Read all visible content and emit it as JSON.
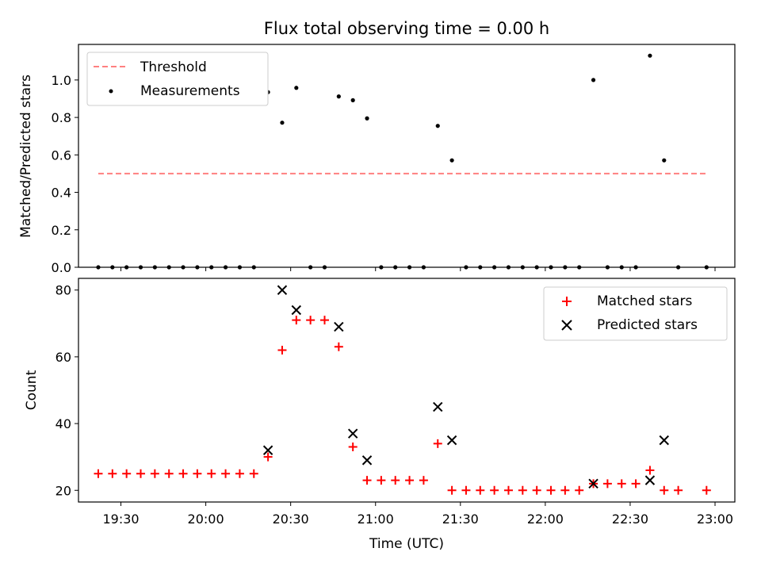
{
  "chart_data": [
    {
      "type": "scatter",
      "title": "Flux total observing time = 0.00 h",
      "xlabel": "",
      "ylabel": "Matched/Predicted stars",
      "xlim": [
        "19:15",
        "23:07"
      ],
      "ylim": [
        0,
        1.19
      ],
      "yticks": [
        "0.0",
        "0.2",
        "0.4",
        "0.6",
        "0.8",
        "1.0"
      ],
      "legend_position": "top-left",
      "grid": false,
      "threshold": {
        "name": "Threshold",
        "value": 0.5,
        "x_start": "19:22",
        "x_end": "22:57",
        "color": "#ff8080"
      },
      "series": [
        {
          "name": "Measurements",
          "color": "#000000",
          "marker": "dot",
          "points": [
            [
              "19:22",
              0
            ],
            [
              "19:27",
              0
            ],
            [
              "19:32",
              0
            ],
            [
              "19:37",
              0
            ],
            [
              "19:42",
              0
            ],
            [
              "19:47",
              0
            ],
            [
              "19:52",
              0
            ],
            [
              "19:57",
              0
            ],
            [
              "20:02",
              0
            ],
            [
              "20:07",
              0
            ],
            [
              "20:12",
              0
            ],
            [
              "20:17",
              0
            ],
            [
              "20:22",
              0.935
            ],
            [
              "20:27",
              0.772
            ],
            [
              "20:32",
              0.958
            ],
            [
              "20:37",
              0
            ],
            [
              "20:42",
              0
            ],
            [
              "20:47",
              0.912
            ],
            [
              "20:52",
              0.892
            ],
            [
              "20:57",
              0.795
            ],
            [
              "21:02",
              0
            ],
            [
              "21:07",
              0
            ],
            [
              "21:12",
              0
            ],
            [
              "21:17",
              0
            ],
            [
              "21:22",
              0.755
            ],
            [
              "21:27",
              0.571
            ],
            [
              "21:32",
              0
            ],
            [
              "21:37",
              0
            ],
            [
              "21:42",
              0
            ],
            [
              "21:47",
              0
            ],
            [
              "21:52",
              0
            ],
            [
              "21:57",
              0
            ],
            [
              "22:02",
              0
            ],
            [
              "22:07",
              0
            ],
            [
              "22:12",
              0
            ],
            [
              "22:17",
              1.0
            ],
            [
              "22:22",
              0
            ],
            [
              "22:27",
              0
            ],
            [
              "22:32",
              0
            ],
            [
              "22:37",
              1.13
            ],
            [
              "22:42",
              0.571
            ],
            [
              "22:47",
              0
            ],
            [
              "22:57",
              0
            ]
          ]
        }
      ]
    },
    {
      "type": "scatter",
      "title": "",
      "xlabel": "Time (UTC)",
      "ylabel": "Count",
      "xlim": [
        "19:15",
        "23:07"
      ],
      "ylim": [
        16.5,
        83.5
      ],
      "yticks": [
        "20",
        "40",
        "60",
        "80"
      ],
      "xticks": [
        "19:30",
        "20:00",
        "20:30",
        "21:00",
        "21:30",
        "22:00",
        "22:30",
        "23:00"
      ],
      "legend_position": "top-right",
      "grid": false,
      "series": [
        {
          "name": "Matched stars",
          "color": "#ff0000",
          "marker": "plus",
          "points": [
            [
              "19:22",
              25
            ],
            [
              "19:27",
              25
            ],
            [
              "19:32",
              25
            ],
            [
              "19:37",
              25
            ],
            [
              "19:42",
              25
            ],
            [
              "19:47",
              25
            ],
            [
              "19:52",
              25
            ],
            [
              "19:57",
              25
            ],
            [
              "20:02",
              25
            ],
            [
              "20:07",
              25
            ],
            [
              "20:12",
              25
            ],
            [
              "20:17",
              25
            ],
            [
              "20:22",
              30
            ],
            [
              "20:27",
              62
            ],
            [
              "20:32",
              71
            ],
            [
              "20:37",
              71
            ],
            [
              "20:42",
              71
            ],
            [
              "20:47",
              63
            ],
            [
              "20:52",
              33
            ],
            [
              "20:57",
              23
            ],
            [
              "21:02",
              23
            ],
            [
              "21:07",
              23
            ],
            [
              "21:12",
              23
            ],
            [
              "21:17",
              23
            ],
            [
              "21:22",
              34
            ],
            [
              "21:27",
              20
            ],
            [
              "21:32",
              20
            ],
            [
              "21:37",
              20
            ],
            [
              "21:42",
              20
            ],
            [
              "21:47",
              20
            ],
            [
              "21:52",
              20
            ],
            [
              "21:57",
              20
            ],
            [
              "22:02",
              20
            ],
            [
              "22:07",
              20
            ],
            [
              "22:12",
              20
            ],
            [
              "22:17",
              22
            ],
            [
              "22:22",
              22
            ],
            [
              "22:27",
              22
            ],
            [
              "22:32",
              22
            ],
            [
              "22:37",
              26
            ],
            [
              "22:42",
              20
            ],
            [
              "22:47",
              20
            ],
            [
              "22:57",
              20
            ]
          ]
        },
        {
          "name": "Predicted stars",
          "color": "#000000",
          "marker": "x",
          "points": [
            [
              "20:22",
              32
            ],
            [
              "20:27",
              80
            ],
            [
              "20:32",
              74
            ],
            [
              "20:47",
              69
            ],
            [
              "20:52",
              37
            ],
            [
              "20:57",
              29
            ],
            [
              "21:22",
              45
            ],
            [
              "21:27",
              35
            ],
            [
              "22:17",
              22
            ],
            [
              "22:37",
              23
            ],
            [
              "22:42",
              35
            ]
          ]
        }
      ]
    }
  ]
}
